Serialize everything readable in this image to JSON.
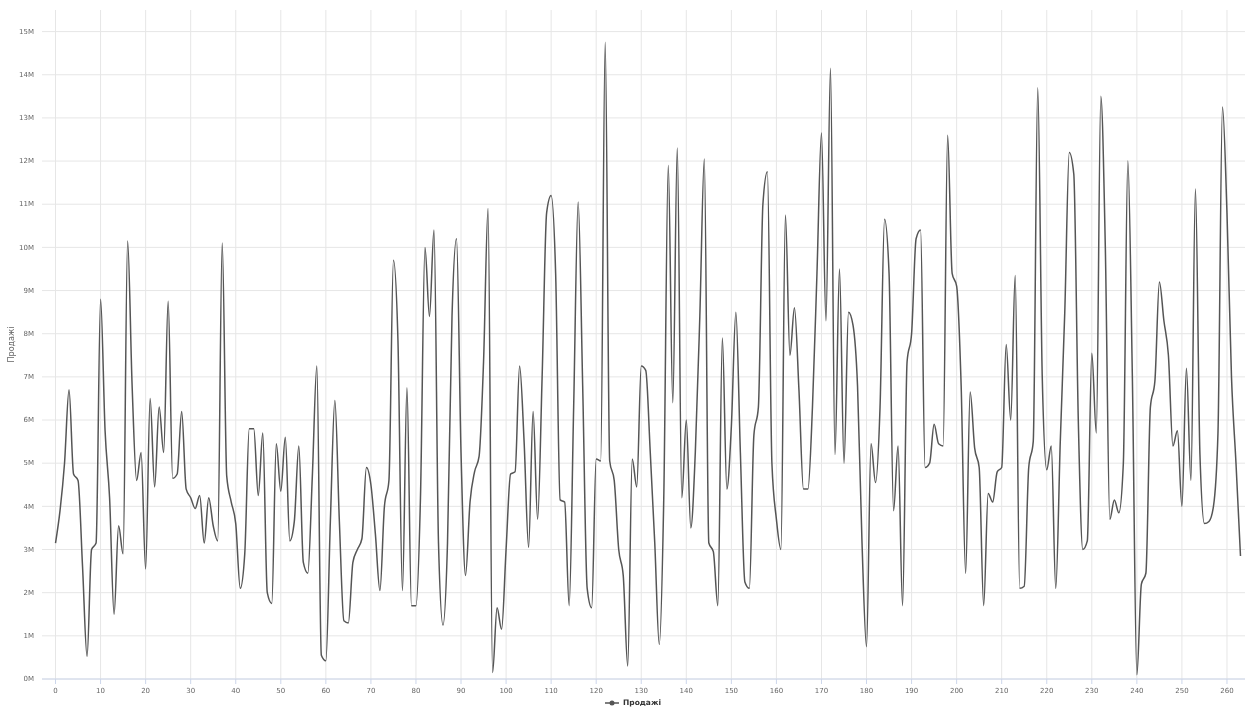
{
  "chart_data": {
    "type": "line",
    "ylabel": "Продажі",
    "legend": "bottom",
    "grid": true,
    "marker": "none",
    "xlim": [
      -3,
      264
    ],
    "ylim": [
      0,
      15.5
    ],
    "xticks": [
      0,
      10,
      20,
      30,
      40,
      50,
      60,
      70,
      80,
      90,
      100,
      110,
      120,
      130,
      140,
      150,
      160,
      170,
      180,
      190,
      200,
      210,
      220,
      230,
      240,
      250,
      260
    ],
    "yticks": [
      {
        "value": 0,
        "label": "0M"
      },
      {
        "value": 1,
        "label": "1M"
      },
      {
        "value": 2,
        "label": "2M"
      },
      {
        "value": 3,
        "label": "3M"
      },
      {
        "value": 4,
        "label": "4M"
      },
      {
        "value": 5,
        "label": "5M"
      },
      {
        "value": 6,
        "label": "6M"
      },
      {
        "value": 7,
        "label": "7M"
      },
      {
        "value": 8,
        "label": "8M"
      },
      {
        "value": 9,
        "label": "9M"
      },
      {
        "value": 10,
        "label": "10M"
      },
      {
        "value": 11,
        "label": "11M"
      },
      {
        "value": 12,
        "label": "12M"
      },
      {
        "value": 13,
        "label": "13M"
      },
      {
        "value": 14,
        "label": "14M"
      },
      {
        "value": 15,
        "label": "15M"
      }
    ],
    "x": [
      0,
      1,
      2,
      3,
      4,
      5,
      6,
      7,
      8,
      9,
      10,
      11,
      12,
      13,
      14,
      15,
      16,
      17,
      18,
      19,
      20,
      21,
      22,
      23,
      24,
      25,
      26,
      27,
      28,
      29,
      30,
      31,
      32,
      33,
      34,
      35,
      36,
      37,
      38,
      39,
      40,
      41,
      42,
      43,
      44,
      45,
      46,
      47,
      48,
      49,
      50,
      51,
      52,
      53,
      54,
      55,
      56,
      57,
      58,
      59,
      60,
      61,
      62,
      63,
      64,
      65,
      66,
      67,
      68,
      69,
      70,
      71,
      72,
      73,
      74,
      75,
      76,
      77,
      78,
      79,
      80,
      81,
      82,
      83,
      84,
      85,
      86,
      87,
      88,
      89,
      90,
      91,
      92,
      93,
      94,
      95,
      96,
      97,
      98,
      99,
      100,
      101,
      102,
      103,
      104,
      105,
      106,
      107,
      108,
      109,
      110,
      111,
      112,
      113,
      114,
      115,
      116,
      117,
      118,
      119,
      120,
      121,
      122,
      123,
      124,
      125,
      126,
      127,
      128,
      129,
      130,
      131,
      132,
      133,
      134,
      135,
      136,
      137,
      138,
      139,
      140,
      141,
      142,
      143,
      144,
      145,
      146,
      147,
      148,
      149,
      150,
      151,
      152,
      153,
      154,
      155,
      156,
      157,
      158,
      159,
      160,
      161,
      162,
      163,
      164,
      165,
      166,
      167,
      168,
      169,
      170,
      171,
      172,
      173,
      174,
      175,
      176,
      177,
      178,
      179,
      180,
      181,
      182,
      183,
      184,
      185,
      186,
      187,
      188,
      189,
      190,
      191,
      192,
      193,
      194,
      195,
      196,
      197,
      198,
      199,
      200,
      201,
      202,
      203,
      204,
      205,
      206,
      207,
      208,
      209,
      210,
      211,
      212,
      213,
      214,
      215,
      216,
      217,
      218,
      219,
      220,
      221,
      222,
      223,
      224,
      225,
      226,
      227,
      228,
      229,
      230,
      231,
      232,
      233,
      234,
      235,
      236,
      237,
      238,
      239,
      240,
      241,
      242,
      243,
      244,
      245,
      246,
      247,
      248,
      249,
      250,
      251,
      252,
      253,
      254,
      255,
      256,
      257,
      258,
      259,
      260,
      261,
      262,
      263
    ],
    "series": [
      {
        "name": "Продажі",
        "color": "#555555",
        "values": [
          3.15,
          3.9,
          5.0,
          6.7,
          4.75,
          4.6,
          2.6,
          0.52,
          3.0,
          3.15,
          8.8,
          5.75,
          4.2,
          1.5,
          3.55,
          2.9,
          10.15,
          6.8,
          4.6,
          5.25,
          2.55,
          6.5,
          4.45,
          6.3,
          5.25,
          8.75,
          4.65,
          4.75,
          6.2,
          4.4,
          4.2,
          3.95,
          4.25,
          3.15,
          4.2,
          3.55,
          3.2,
          10.1,
          4.7,
          4.1,
          3.6,
          2.1,
          2.9,
          5.8,
          5.8,
          4.25,
          5.7,
          2.0,
          1.75,
          5.45,
          4.35,
          5.6,
          3.2,
          3.65,
          5.4,
          2.7,
          2.45,
          4.7,
          7.25,
          0.55,
          0.42,
          3.65,
          6.45,
          3.65,
          1.35,
          1.3,
          2.7,
          3.0,
          3.25,
          4.9,
          4.5,
          3.35,
          2.05,
          4.0,
          4.6,
          9.7,
          7.85,
          2.05,
          6.75,
          1.7,
          1.7,
          4.2,
          10.0,
          8.4,
          10.4,
          3.15,
          1.25,
          3.15,
          8.4,
          10.2,
          5.25,
          2.4,
          4.1,
          4.8,
          5.15,
          7.35,
          10.9,
          0.15,
          1.65,
          1.15,
          3.0,
          4.75,
          4.8,
          7.25,
          5.5,
          3.05,
          6.2,
          3.7,
          7.0,
          10.8,
          11.2,
          9.4,
          4.15,
          4.1,
          1.7,
          6.3,
          11.05,
          6.8,
          2.1,
          1.65,
          5.1,
          5.05,
          14.75,
          5.05,
          4.6,
          3.0,
          2.4,
          0.3,
          5.1,
          4.45,
          7.25,
          7.15,
          5.25,
          3.15,
          0.8,
          4.2,
          11.9,
          6.4,
          12.3,
          4.2,
          6.0,
          3.5,
          5.25,
          8.4,
          12.05,
          3.15,
          2.95,
          1.7,
          7.9,
          4.4,
          5.85,
          8.5,
          5.25,
          2.25,
          2.1,
          5.65,
          6.3,
          11.0,
          11.75,
          5.0,
          3.7,
          3.0,
          10.75,
          7.5,
          8.6,
          6.7,
          4.4,
          4.4,
          6.3,
          9.4,
          12.65,
          8.3,
          14.15,
          5.2,
          9.5,
          5.0,
          8.5,
          8.2,
          6.8,
          3.15,
          0.75,
          5.45,
          4.55,
          6.3,
          10.65,
          9.4,
          3.9,
          5.4,
          1.7,
          7.35,
          8.0,
          10.2,
          10.4,
          4.9,
          5.0,
          5.9,
          5.45,
          5.4,
          12.6,
          9.4,
          9.1,
          6.8,
          2.45,
          6.65,
          5.35,
          4.9,
          1.7,
          4.3,
          4.1,
          4.8,
          4.9,
          7.75,
          6.0,
          9.35,
          2.1,
          2.15,
          4.9,
          5.5,
          13.7,
          7.0,
          4.85,
          5.4,
          2.1,
          5.5,
          8.5,
          12.2,
          11.7,
          6.0,
          3.0,
          3.2,
          7.55,
          5.7,
          13.5,
          10.0,
          3.7,
          4.15,
          3.85,
          5.0,
          12.0,
          7.0,
          0.1,
          2.2,
          2.45,
          6.3,
          6.9,
          9.2,
          8.3,
          7.5,
          5.4,
          5.75,
          4.0,
          7.2,
          4.6,
          11.35,
          5.2,
          3.6,
          3.65,
          4.0,
          5.7,
          13.25,
          10.8,
          7.0,
          5.0,
          2.85
        ]
      }
    ]
  }
}
